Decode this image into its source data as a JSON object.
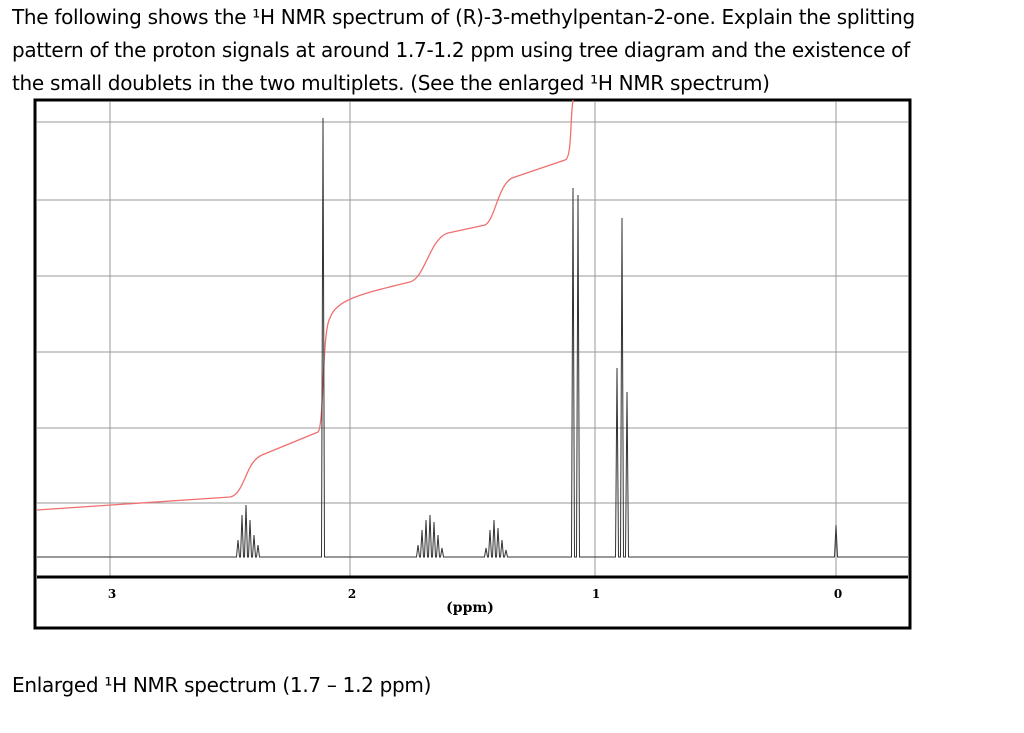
{
  "question": {
    "lines": [
      "The following shows the ¹H NMR spectrum of (R)-3-methylpentan-2-one.  Explain the splitting",
      "pattern of the proton signals at around 1.7-1.2 ppm using tree diagram and the existence of",
      "the small doublets in the two multiplets.  (See the enlarged ¹H NMR spectrum)"
    ]
  },
  "figure": {
    "axis_labels": [
      "3",
      "2",
      "1",
      "0"
    ],
    "axis_title": "(ppm)"
  },
  "caption": "Enlarged ¹H NMR spectrum (1.7 – 1.2 ppm)"
}
